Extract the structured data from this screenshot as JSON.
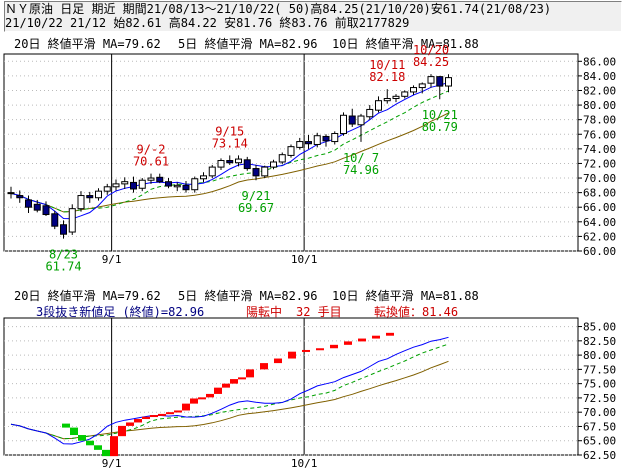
{
  "header": {
    "line1": "ＮＹ原油 日足 期近 期間21/08/13～21/10/22( 50)高84.25(21/10/20)安61.74(21/08/23)",
    "line2": "21/10/22 21/12 始82.61 高84.22 安81.76 終83.76 前取2177829"
  },
  "colors": {
    "ma20": "#806000",
    "ma5": "#0000ff",
    "ma10": "#00a000",
    "up": "#000080",
    "down": "#ffffff",
    "annot_high": "#cc0000",
    "annot_low": "#00a000",
    "brick_up": "#ff0000",
    "brick_down": "#00cc00"
  },
  "chart_data": [
    {
      "type": "candlestick",
      "legend": {
        "ma20": "20日 終値平滑 MA=79.62",
        "ma5": "5日 終値平滑 MA=82.96",
        "ma10": "10日 終値平滑 MA=81.88"
      },
      "x_tick_labels": [
        "9/1",
        "10/1"
      ],
      "y_tick_labels": [
        "86.00",
        "84.00",
        "82.00",
        "80.00",
        "78.00",
        "76.00",
        "74.00",
        "72.00",
        "70.00",
        "68.00",
        "66.00",
        "64.00",
        "62.00",
        "60.00"
      ],
      "ylim": [
        60,
        87
      ],
      "candles": [
        {
          "o": 68.0,
          "h": 68.8,
          "l": 67.2,
          "c": 67.9
        },
        {
          "o": 67.6,
          "h": 68.3,
          "l": 66.6,
          "c": 67.3
        },
        {
          "o": 67.0,
          "h": 67.6,
          "l": 65.2,
          "c": 66.0
        },
        {
          "o": 66.4,
          "h": 67.0,
          "l": 65.3,
          "c": 65.6
        },
        {
          "o": 66.2,
          "h": 66.8,
          "l": 64.8,
          "c": 65.0
        },
        {
          "o": 65.1,
          "h": 65.5,
          "l": 63.0,
          "c": 63.4
        },
        {
          "o": 63.6,
          "h": 64.2,
          "l": 61.7,
          "c": 62.3
        },
        {
          "o": 62.6,
          "h": 66.4,
          "l": 62.2,
          "c": 65.8
        },
        {
          "o": 65.8,
          "h": 68.2,
          "l": 65.4,
          "c": 67.6
        },
        {
          "o": 67.6,
          "h": 68.1,
          "l": 66.6,
          "c": 67.3
        },
        {
          "o": 67.3,
          "h": 68.6,
          "l": 66.9,
          "c": 68.2
        },
        {
          "o": 68.2,
          "h": 69.2,
          "l": 67.7,
          "c": 68.8
        },
        {
          "o": 68.8,
          "h": 69.8,
          "l": 68.3,
          "c": 69.2
        },
        {
          "o": 69.2,
          "h": 70.1,
          "l": 68.5,
          "c": 69.5
        },
        {
          "o": 69.4,
          "h": 70.2,
          "l": 68.0,
          "c": 68.5
        },
        {
          "o": 68.6,
          "h": 70.0,
          "l": 68.2,
          "c": 69.7
        },
        {
          "o": 69.7,
          "h": 70.6,
          "l": 69.2,
          "c": 70.0
        },
        {
          "o": 70.1,
          "h": 70.6,
          "l": 69.3,
          "c": 69.5
        },
        {
          "o": 69.5,
          "h": 70.0,
          "l": 68.6,
          "c": 68.9
        },
        {
          "o": 68.8,
          "h": 69.4,
          "l": 68.2,
          "c": 69.0
        },
        {
          "o": 69.0,
          "h": 69.6,
          "l": 68.0,
          "c": 68.4
        },
        {
          "o": 68.4,
          "h": 70.2,
          "l": 68.0,
          "c": 69.9
        },
        {
          "o": 69.9,
          "h": 70.8,
          "l": 69.4,
          "c": 70.3
        },
        {
          "o": 70.3,
          "h": 71.8,
          "l": 70.0,
          "c": 71.5
        },
        {
          "o": 71.5,
          "h": 72.7,
          "l": 71.1,
          "c": 72.4
        },
        {
          "o": 72.4,
          "h": 73.1,
          "l": 71.8,
          "c": 72.1
        },
        {
          "o": 72.1,
          "h": 73.1,
          "l": 71.6,
          "c": 72.6
        },
        {
          "o": 72.5,
          "h": 72.9,
          "l": 71.0,
          "c": 71.3
        },
        {
          "o": 71.3,
          "h": 71.8,
          "l": 69.7,
          "c": 70.3
        },
        {
          "o": 70.3,
          "h": 71.7,
          "l": 70.0,
          "c": 71.5
        },
        {
          "o": 71.5,
          "h": 72.5,
          "l": 71.2,
          "c": 72.2
        },
        {
          "o": 72.2,
          "h": 73.5,
          "l": 71.9,
          "c": 73.2
        },
        {
          "o": 73.1,
          "h": 74.6,
          "l": 72.8,
          "c": 74.3
        },
        {
          "o": 74.2,
          "h": 75.5,
          "l": 73.9,
          "c": 75.0
        },
        {
          "o": 75.0,
          "h": 75.9,
          "l": 74.0,
          "c": 74.7
        },
        {
          "o": 74.6,
          "h": 76.2,
          "l": 74.2,
          "c": 75.8
        },
        {
          "o": 75.7,
          "h": 76.0,
          "l": 74.3,
          "c": 75.1
        },
        {
          "o": 75.0,
          "h": 76.4,
          "l": 74.6,
          "c": 76.1
        },
        {
          "o": 76.1,
          "h": 79.0,
          "l": 75.8,
          "c": 78.6
        },
        {
          "o": 78.5,
          "h": 79.5,
          "l": 77.0,
          "c": 77.4
        },
        {
          "o": 77.3,
          "h": 78.8,
          "l": 74.96,
          "c": 78.5
        },
        {
          "o": 78.4,
          "h": 80.0,
          "l": 78.0,
          "c": 79.4
        },
        {
          "o": 79.3,
          "h": 81.2,
          "l": 79.0,
          "c": 80.6
        },
        {
          "o": 80.6,
          "h": 82.18,
          "l": 80.2,
          "c": 80.9
        },
        {
          "o": 80.9,
          "h": 81.5,
          "l": 80.4,
          "c": 81.2
        },
        {
          "o": 81.2,
          "h": 82.0,
          "l": 80.9,
          "c": 81.8
        },
        {
          "o": 81.8,
          "h": 82.7,
          "l": 81.4,
          "c": 82.4
        },
        {
          "o": 82.4,
          "h": 83.1,
          "l": 81.6,
          "c": 82.9
        },
        {
          "o": 83.0,
          "h": 84.25,
          "l": 82.4,
          "c": 83.9
        },
        {
          "o": 83.9,
          "h": 84.0,
          "l": 80.8,
          "c": 82.6
        },
        {
          "o": 82.61,
          "h": 84.22,
          "l": 81.76,
          "c": 83.76
        }
      ],
      "annotations": [
        {
          "label": "9/-2",
          "value": "70.61",
          "i": 16,
          "pos": "above"
        },
        {
          "label": "9/15",
          "value": "73.14",
          "i": 25,
          "pos": "above"
        },
        {
          "label": "10/11",
          "value": "82.18",
          "i": 43,
          "pos": "above"
        },
        {
          "label": "10/20",
          "value": "84.25",
          "i": 48,
          "pos": "above"
        },
        {
          "label": "8/23",
          "value": "61.74",
          "i": 6,
          "pos": "below"
        },
        {
          "label": "9/21",
          "value": "69.67",
          "i": 28,
          "pos": "below"
        },
        {
          "label": "10/ 7",
          "value": "74.96",
          "i": 40,
          "pos": "below"
        },
        {
          "label": "10/21",
          "value": "80.79",
          "i": 49,
          "pos": "below"
        }
      ]
    },
    {
      "type": "three-line-break",
      "legend": {
        "ma20": "20日 終値平滑 MA=79.62",
        "ma5": "5日 終値平滑 MA=82.96",
        "ma10": "10日 終値平滑 MA=81.88"
      },
      "info": {
        "name": "3段抜き新値足 (終値)=82.96",
        "trend": "陽転中",
        "count": "32 手目",
        "turn": "転換値：81.46"
      },
      "x_tick_labels": [
        "9/1",
        "10/1"
      ],
      "y_tick_labels": [
        "85.00",
        "82.50",
        "80.00",
        "77.50",
        "75.00",
        "72.50",
        "70.00",
        "67.50",
        "65.00",
        "62.50"
      ],
      "ylim": [
        62.5,
        86.5
      ],
      "bricks_down": [
        [
          68.0,
          67.3
        ],
        [
          67.3,
          66.0
        ],
        [
          66.0,
          65.0
        ],
        [
          65.0,
          64.2
        ],
        [
          64.2,
          63.4
        ],
        [
          63.4,
          62.3
        ]
      ],
      "bricks_up": [
        [
          62.3,
          65.8
        ],
        [
          65.8,
          67.6
        ],
        [
          67.6,
          68.2
        ],
        [
          68.2,
          68.8
        ],
        [
          68.8,
          69.2
        ],
        [
          69.2,
          69.5
        ],
        [
          69.5,
          69.7
        ],
        [
          69.7,
          70.0
        ],
        [
          70.0,
          70.3
        ],
        [
          70.3,
          71.5
        ],
        [
          71.5,
          72.4
        ],
        [
          72.4,
          72.6
        ],
        [
          72.6,
          73.2
        ],
        [
          73.2,
          74.3
        ],
        [
          74.3,
          75.0
        ],
        [
          75.0,
          75.8
        ],
        [
          75.8,
          76.1
        ],
        [
          76.1,
          77.5
        ],
        [
          77.5,
          78.6
        ],
        [
          78.6,
          79.4
        ],
        [
          79.4,
          80.6
        ],
        [
          80.6,
          80.9
        ],
        [
          80.9,
          81.2
        ],
        [
          81.2,
          81.8
        ],
        [
          81.8,
          82.4
        ],
        [
          82.4,
          82.9
        ],
        [
          82.9,
          83.4
        ],
        [
          83.4,
          83.9
        ]
      ]
    }
  ]
}
